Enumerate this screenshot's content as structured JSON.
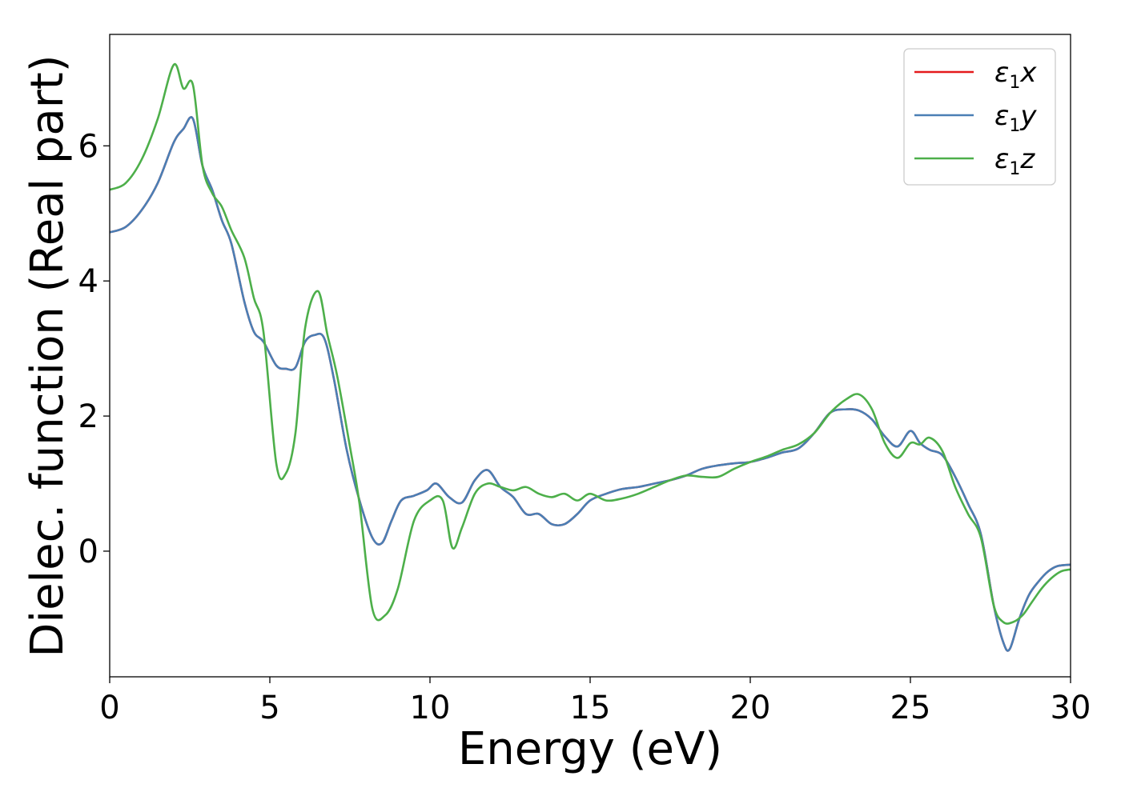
{
  "chart_data": {
    "type": "line",
    "xlabel": "Energy (eV)",
    "ylabel": "Dielec. function (Real part)",
    "xlim": [
      0,
      30
    ],
    "ylim": [
      -1.86,
      7.65
    ],
    "xticks": [
      0,
      5,
      10,
      15,
      20,
      25,
      30
    ],
    "xtick_labels": [
      "0",
      "5",
      "10",
      "15",
      "20",
      "25",
      "30"
    ],
    "yticks": [
      0,
      2,
      4,
      6
    ],
    "ytick_labels": [
      "0",
      "2",
      "4",
      "6"
    ],
    "grid": false,
    "legend_position": "top-right",
    "series": [
      {
        "name": "ε₁x",
        "legend_base": "ε",
        "legend_sub": "1",
        "legend_suffix": "x",
        "color": "#e41a1c",
        "x": [
          0,
          0.5,
          1,
          1.5,
          2,
          2.3,
          2.6,
          2.9,
          3.2,
          3.5,
          3.8,
          4.2,
          4.5,
          4.8,
          5.2,
          5.5,
          5.8,
          6.1,
          6.4,
          6.7,
          7,
          7.4,
          7.8,
          8.2,
          8.5,
          8.8,
          9.1,
          9.5,
          9.9,
          10.2,
          10.6,
          11,
          11.4,
          11.8,
          12.2,
          12.6,
          13,
          13.4,
          13.8,
          14.2,
          14.6,
          15,
          15.5,
          16,
          16.5,
          17,
          17.5,
          18,
          18.5,
          19,
          19.5,
          20,
          20.5,
          21,
          21.5,
          22,
          22.5,
          23,
          23.4,
          23.8,
          24.2,
          24.6,
          25,
          25.3,
          25.6,
          26,
          26.4,
          26.8,
          27.2,
          27.6,
          27.9,
          28.1,
          28.4,
          28.7,
          29,
          29.3,
          29.6,
          30
        ],
        "y": [
          4.72,
          4.8,
          5.05,
          5.45,
          6.05,
          6.25,
          6.4,
          5.7,
          5.35,
          4.9,
          4.55,
          3.7,
          3.25,
          3.1,
          2.75,
          2.7,
          2.72,
          3.1,
          3.2,
          3.15,
          2.55,
          1.5,
          0.75,
          0.2,
          0.12,
          0.45,
          0.75,
          0.82,
          0.9,
          1.0,
          0.8,
          0.72,
          1.05,
          1.2,
          0.95,
          0.8,
          0.55,
          0.55,
          0.4,
          0.4,
          0.55,
          0.75,
          0.85,
          0.92,
          0.95,
          1.0,
          1.05,
          1.12,
          1.22,
          1.27,
          1.3,
          1.32,
          1.38,
          1.46,
          1.52,
          1.75,
          2.05,
          2.1,
          2.08,
          1.95,
          1.7,
          1.55,
          1.78,
          1.6,
          1.5,
          1.42,
          1.1,
          0.7,
          0.25,
          -0.8,
          -1.35,
          -1.45,
          -1.0,
          -0.65,
          -0.45,
          -0.3,
          -0.22,
          -0.2
        ]
      },
      {
        "name": "ε₁y",
        "legend_base": "ε",
        "legend_sub": "1",
        "legend_suffix": "y",
        "color": "#4a7fb5",
        "x": [
          0,
          0.5,
          1,
          1.5,
          2,
          2.3,
          2.6,
          2.9,
          3.2,
          3.5,
          3.8,
          4.2,
          4.5,
          4.8,
          5.2,
          5.5,
          5.8,
          6.1,
          6.4,
          6.7,
          7,
          7.4,
          7.8,
          8.2,
          8.5,
          8.8,
          9.1,
          9.5,
          9.9,
          10.2,
          10.6,
          11,
          11.4,
          11.8,
          12.2,
          12.6,
          13,
          13.4,
          13.8,
          14.2,
          14.6,
          15,
          15.5,
          16,
          16.5,
          17,
          17.5,
          18,
          18.5,
          19,
          19.5,
          20,
          20.5,
          21,
          21.5,
          22,
          22.5,
          23,
          23.4,
          23.8,
          24.2,
          24.6,
          25,
          25.3,
          25.6,
          26,
          26.4,
          26.8,
          27.2,
          27.6,
          27.9,
          28.1,
          28.4,
          28.7,
          29,
          29.3,
          29.6,
          30
        ],
        "y": [
          4.72,
          4.8,
          5.05,
          5.45,
          6.05,
          6.25,
          6.4,
          5.7,
          5.35,
          4.9,
          4.55,
          3.7,
          3.25,
          3.1,
          2.75,
          2.7,
          2.72,
          3.1,
          3.2,
          3.15,
          2.55,
          1.5,
          0.75,
          0.2,
          0.12,
          0.45,
          0.75,
          0.82,
          0.9,
          1.0,
          0.8,
          0.72,
          1.05,
          1.2,
          0.95,
          0.8,
          0.55,
          0.55,
          0.4,
          0.4,
          0.55,
          0.75,
          0.85,
          0.92,
          0.95,
          1.0,
          1.05,
          1.12,
          1.22,
          1.27,
          1.3,
          1.32,
          1.38,
          1.46,
          1.52,
          1.75,
          2.05,
          2.1,
          2.08,
          1.95,
          1.7,
          1.55,
          1.78,
          1.6,
          1.5,
          1.42,
          1.1,
          0.7,
          0.25,
          -0.8,
          -1.35,
          -1.45,
          -1.0,
          -0.65,
          -0.45,
          -0.3,
          -0.22,
          -0.2
        ]
      },
      {
        "name": "ε₁z",
        "legend_base": "ε",
        "legend_sub": "1",
        "legend_suffix": "z",
        "color": "#4daf4a",
        "x": [
          0,
          0.5,
          1,
          1.5,
          2,
          2.3,
          2.6,
          2.9,
          3.2,
          3.5,
          3.8,
          4.2,
          4.5,
          4.8,
          5.2,
          5.5,
          5.8,
          6.1,
          6.5,
          6.8,
          7.1,
          7.5,
          7.8,
          8.2,
          8.6,
          9,
          9.5,
          10,
          10.4,
          10.7,
          11,
          11.4,
          11.8,
          12.2,
          12.6,
          13,
          13.4,
          13.8,
          14.2,
          14.6,
          15,
          15.5,
          16,
          16.5,
          17,
          17.5,
          18,
          18.5,
          19,
          19.5,
          20,
          20.5,
          21,
          21.5,
          22,
          22.5,
          23,
          23.4,
          23.8,
          24.2,
          24.6,
          25,
          25.3,
          25.6,
          26,
          26.4,
          26.8,
          27.2,
          27.6,
          27.9,
          28.2,
          28.5,
          28.8,
          29.1,
          29.4,
          29.7,
          30
        ],
        "y": [
          5.35,
          5.45,
          5.8,
          6.4,
          7.2,
          6.85,
          6.9,
          5.7,
          5.3,
          5.1,
          4.75,
          4.35,
          3.75,
          3.25,
          1.3,
          1.15,
          1.75,
          3.3,
          3.85,
          3.2,
          2.6,
          1.55,
          0.7,
          -0.85,
          -0.95,
          -0.55,
          0.45,
          0.75,
          0.75,
          0.05,
          0.35,
          0.85,
          1.0,
          0.95,
          0.9,
          0.95,
          0.85,
          0.8,
          0.85,
          0.75,
          0.85,
          0.75,
          0.78,
          0.85,
          0.95,
          1.05,
          1.12,
          1.1,
          1.1,
          1.22,
          1.32,
          1.4,
          1.5,
          1.58,
          1.75,
          2.05,
          2.25,
          2.32,
          2.1,
          1.6,
          1.38,
          1.6,
          1.58,
          1.68,
          1.48,
          0.95,
          0.55,
          0.2,
          -0.8,
          -1.05,
          -1.05,
          -0.95,
          -0.75,
          -0.55,
          -0.4,
          -0.3,
          -0.27
        ]
      }
    ]
  }
}
